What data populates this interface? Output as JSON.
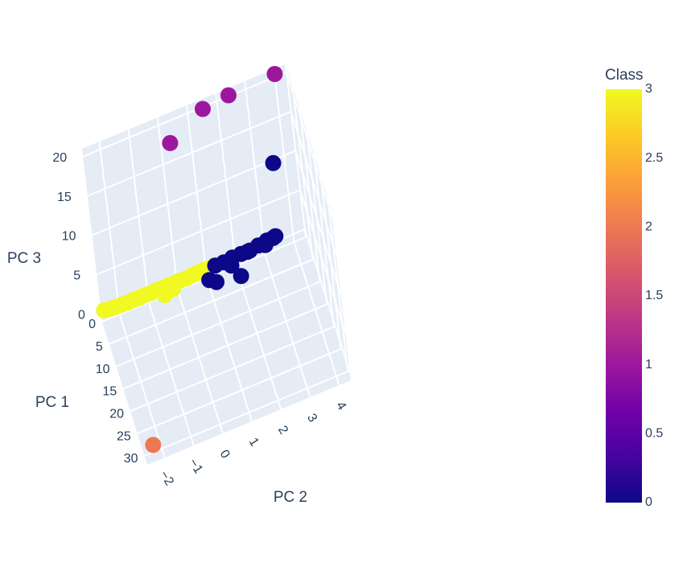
{
  "chart_data": {
    "type": "scatter",
    "axes": {
      "x": {
        "title": "PC 1",
        "range": [
          0,
          32
        ],
        "ticks": [
          0,
          5,
          10,
          15,
          20,
          25,
          30
        ]
      },
      "y": {
        "title": "PC 2",
        "range": [
          -2.6,
          4.4
        ],
        "ticks": [
          -2,
          -1,
          0,
          1,
          2,
          3,
          4
        ],
        "tick_labels": [
          "−2",
          "−1",
          "0",
          "1",
          "2",
          "3",
          "4"
        ]
      },
      "z": {
        "title": "PC 3",
        "range": [
          -1,
          21
        ],
        "ticks": [
          0,
          5,
          10,
          15,
          20
        ]
      }
    },
    "colorbar": {
      "title": "Class",
      "range": [
        0,
        3
      ],
      "ticks": [
        0,
        0.5,
        1,
        1.5,
        2,
        2.5,
        3
      ],
      "tick_labels": [
        "0",
        "0.5",
        "1",
        "1.5",
        "2",
        "2.5",
        "3"
      ],
      "colorscale": [
        "#0d0887",
        "#46039f",
        "#7201a8",
        "#9c179e",
        "#bd3786",
        "#d8576b",
        "#ed7953",
        "#fb9f3a",
        "#fdca26",
        "#f0f921"
      ]
    },
    "points": [
      {
        "x": 0.2,
        "y": -2.5,
        "z": 0.4,
        "class": 3
      },
      {
        "x": 0.2,
        "y": -2.3,
        "z": 0.3,
        "class": 3
      },
      {
        "x": 0.3,
        "y": -2.1,
        "z": 0.3,
        "class": 3
      },
      {
        "x": 0.2,
        "y": -1.9,
        "z": 0.2,
        "class": 3
      },
      {
        "x": 0.3,
        "y": -1.7,
        "z": 0.2,
        "class": 3
      },
      {
        "x": 0.2,
        "y": -1.5,
        "z": 0.2,
        "class": 3
      },
      {
        "x": 0.3,
        "y": -1.3,
        "z": 0.2,
        "class": 3
      },
      {
        "x": 0.2,
        "y": -1.1,
        "z": 0.2,
        "class": 3
      },
      {
        "x": 0.3,
        "y": -0.9,
        "z": 0.2,
        "class": 3
      },
      {
        "x": 0.2,
        "y": -0.7,
        "z": 0.2,
        "class": 3
      },
      {
        "x": 0.3,
        "y": -0.5,
        "z": 0.2,
        "class": 3
      },
      {
        "x": 0.2,
        "y": -0.3,
        "z": 0.2,
        "class": 3
      },
      {
        "x": 0.3,
        "y": -0.1,
        "z": 0.2,
        "class": 3
      },
      {
        "x": 0.2,
        "y": 0.1,
        "z": 0.2,
        "class": 3
      },
      {
        "x": 0.3,
        "y": 0.3,
        "z": 0.2,
        "class": 3
      },
      {
        "x": 0.2,
        "y": 0.5,
        "z": 0.2,
        "class": 3
      },
      {
        "x": 0.3,
        "y": 0.7,
        "z": 0.3,
        "class": 3
      },
      {
        "x": 0.2,
        "y": 0.9,
        "z": 0.3,
        "class": 3
      },
      {
        "x": 0.3,
        "y": 1.1,
        "z": 0.3,
        "class": 3
      },
      {
        "x": 0.2,
        "y": 1.3,
        "z": 0.3,
        "class": 3
      },
      {
        "x": 2.0,
        "y": -0.5,
        "z": 0.3,
        "class": 3
      },
      {
        "x": 1.5,
        "y": -0.2,
        "z": 0.3,
        "class": 3
      },
      {
        "x": 0.8,
        "y": 0.3,
        "z": 0.5,
        "class": 3
      },
      {
        "x": 0.8,
        "y": 1.3,
        "z": 0.6,
        "class": 0
      },
      {
        "x": 0.7,
        "y": 1.6,
        "z": 0.5,
        "class": 0
      },
      {
        "x": 0.6,
        "y": 1.9,
        "z": 0.6,
        "class": 0
      },
      {
        "x": 0.6,
        "y": 2.2,
        "z": 0.6,
        "class": 0
      },
      {
        "x": 0.5,
        "y": 2.5,
        "z": 0.5,
        "class": 0
      },
      {
        "x": 0.5,
        "y": 2.8,
        "z": 0.7,
        "class": 0
      },
      {
        "x": 0.4,
        "y": 3.1,
        "z": 0.8,
        "class": 0
      },
      {
        "x": 0.4,
        "y": 3.4,
        "z": 0.9,
        "class": 0
      },
      {
        "x": 1.2,
        "y": 2.4,
        "z": 0.9,
        "class": 0
      },
      {
        "x": 1.5,
        "y": 3.0,
        "z": 1.0,
        "class": 0
      },
      {
        "x": 0.9,
        "y": 3.3,
        "z": 1.1,
        "class": 0
      },
      {
        "x": 1.8,
        "y": 1.8,
        "z": 0.4,
        "class": 0
      },
      {
        "x": 2.5,
        "y": 1.0,
        "z": 0.2,
        "class": 0
      },
      {
        "x": 3.5,
        "y": 1.2,
        "z": 0.2,
        "class": 0
      },
      {
        "x": 4.5,
        "y": 2.0,
        "z": 0.3,
        "class": 0
      },
      {
        "x": 0.6,
        "y": 3.6,
        "z": 10.0,
        "class": 0
      },
      {
        "x": 0.4,
        "y": 0.3,
        "z": 17.5,
        "class": 1
      },
      {
        "x": 0.4,
        "y": 1.5,
        "z": 20.0,
        "class": 1
      },
      {
        "x": 0.3,
        "y": 2.4,
        "z": 20.3,
        "class": 1
      },
      {
        "x": 0.2,
        "y": 4.0,
        "z": 20.5,
        "class": 1
      },
      {
        "x": 31.0,
        "y": -2.3,
        "z": 0.5,
        "class": 2
      }
    ]
  }
}
